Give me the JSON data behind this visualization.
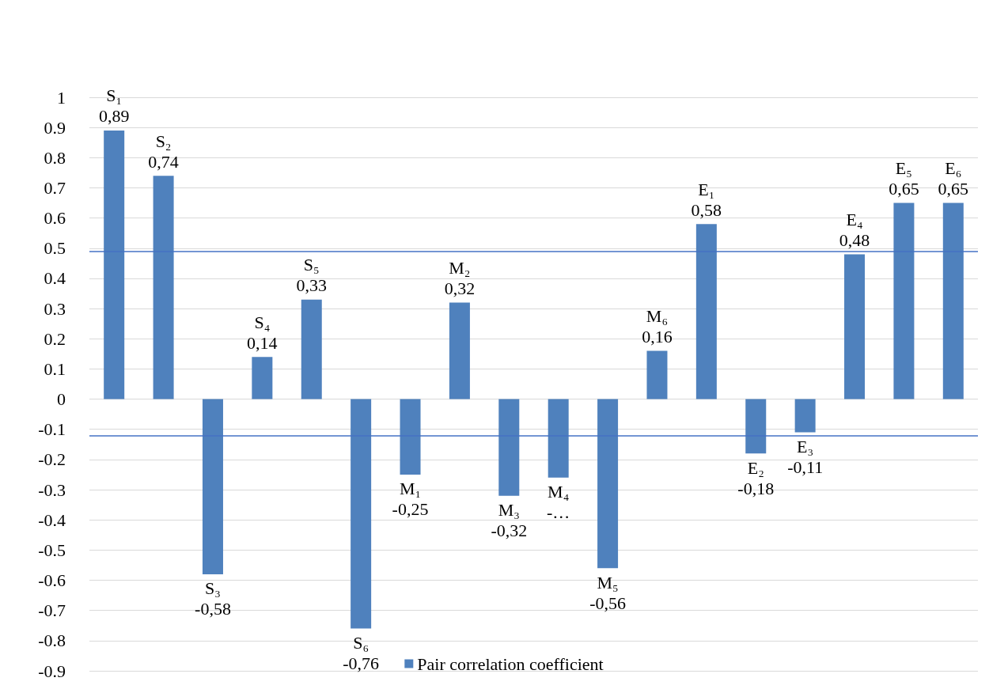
{
  "chart_data": {
    "type": "bar",
    "categories": [
      "S₁",
      "S₂",
      "S₃",
      "S₄",
      "S₅",
      "S₆",
      "M₁",
      "M₂",
      "M₃",
      "M₄",
      "M₅",
      "M₆",
      "E₁",
      "E₂",
      "E₃",
      "E₄",
      "E₅",
      "E₆"
    ],
    "series": [
      {
        "name": "Pair correlation coefficient",
        "color": "#4f81bd",
        "values": [
          0.89,
          0.74,
          -0.58,
          0.14,
          0.33,
          -0.76,
          -0.25,
          0.32,
          -0.32,
          -0.26,
          -0.56,
          0.16,
          0.58,
          -0.18,
          -0.11,
          0.48,
          0.65,
          0.65
        ],
        "value_labels": [
          "0,89",
          "0,74",
          "-0,58",
          "0,14",
          "0,33",
          "-0,76",
          "-0,25",
          "0,32",
          "-0,32",
          "-…",
          "-0,56",
          "0,16",
          "0,58",
          "-0,18",
          "-0,11",
          "0,48",
          "0,65",
          "0,65"
        ]
      }
    ],
    "ylim": [
      -0.9,
      1
    ],
    "yticks": [
      -0.9,
      -0.8,
      -0.7,
      -0.6,
      -0.5,
      -0.4,
      -0.3,
      -0.2,
      -0.1,
      0,
      0.1,
      0.2,
      0.3,
      0.4,
      0.5,
      0.6,
      0.7,
      0.8,
      0.9,
      1
    ],
    "ref_lines": [
      {
        "axis": "y",
        "value": 0.49,
        "color": "#4472c4"
      },
      {
        "axis": "y",
        "value": -0.12,
        "color": "#4472c4"
      }
    ],
    "grid": "y",
    "legend": "bottom",
    "tick_labels": "y"
  }
}
